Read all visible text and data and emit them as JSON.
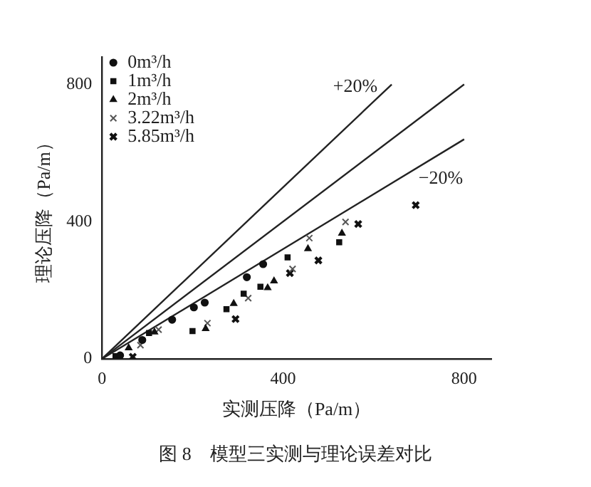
{
  "chart_data": {
    "type": "scatter",
    "xlabel": "实测压降（Pa/m）",
    "ylabel": "理论压降（Pa/m）",
    "xlim": [
      0,
      860
    ],
    "ylim": [
      0,
      880
    ],
    "xticks": [
      0,
      400,
      800
    ],
    "yticks": [
      0,
      400,
      800
    ],
    "grid": false,
    "legend": "top left",
    "annotations": [
      "图 8　模型三实测与理论误差对比"
    ],
    "series": [
      {
        "name": "0m³/h",
        "color": "#111111",
        "marker": "circle",
        "x": [
          40,
          89,
          101,
          155,
          203,
          227,
          320,
          356
        ],
        "values": [
          10,
          55,
          null,
          114,
          150,
          164,
          238,
          276
        ]
      },
      {
        "name": "1m³/h",
        "color": "#111111",
        "marker": "square",
        "x": [
          30,
          104,
          200,
          275,
          313,
          350,
          410,
          524
        ],
        "values": [
          8,
          75,
          81,
          145,
          190,
          210,
          296,
          340
        ]
      },
      {
        "name": "2m³/h",
        "color": "#111111",
        "marker": "triangle",
        "x": [
          59,
          116,
          229,
          291,
          366,
          380,
          455,
          530
        ],
        "values": [
          32,
          78,
          88,
          161,
          207,
          227,
          321,
          366
        ]
      },
      {
        "name": "3.22m³/h",
        "color": "#555555",
        "marker": "cross",
        "x": [
          85,
          125,
          233,
          323,
          421,
          458,
          538
        ],
        "values": [
          40,
          85,
          104,
          177,
          262,
          352,
          399
        ]
      },
      {
        "name": "5.85m³/h",
        "color": "#111111",
        "marker": "cross",
        "x": [
          68,
          295,
          415,
          478,
          566,
          693
        ],
        "values": [
          6,
          116,
          250,
          287,
          393,
          448
        ]
      },
      {
        "name": "+20%",
        "type": "line",
        "color": "#222222",
        "marker": "none",
        "line_style": "solid",
        "x": [
          0,
          640
        ],
        "values": [
          0,
          800
        ]
      },
      {
        "type": "line",
        "color": "#222222",
        "marker": "none",
        "line_style": "solid",
        "x": [
          0,
          800
        ],
        "values": [
          0,
          800
        ]
      },
      {
        "name": "−20%",
        "type": "line",
        "color": "#222222",
        "marker": "none",
        "line_style": "solid",
        "x": [
          0,
          800
        ],
        "values": [
          0,
          640
        ]
      }
    ]
  }
}
